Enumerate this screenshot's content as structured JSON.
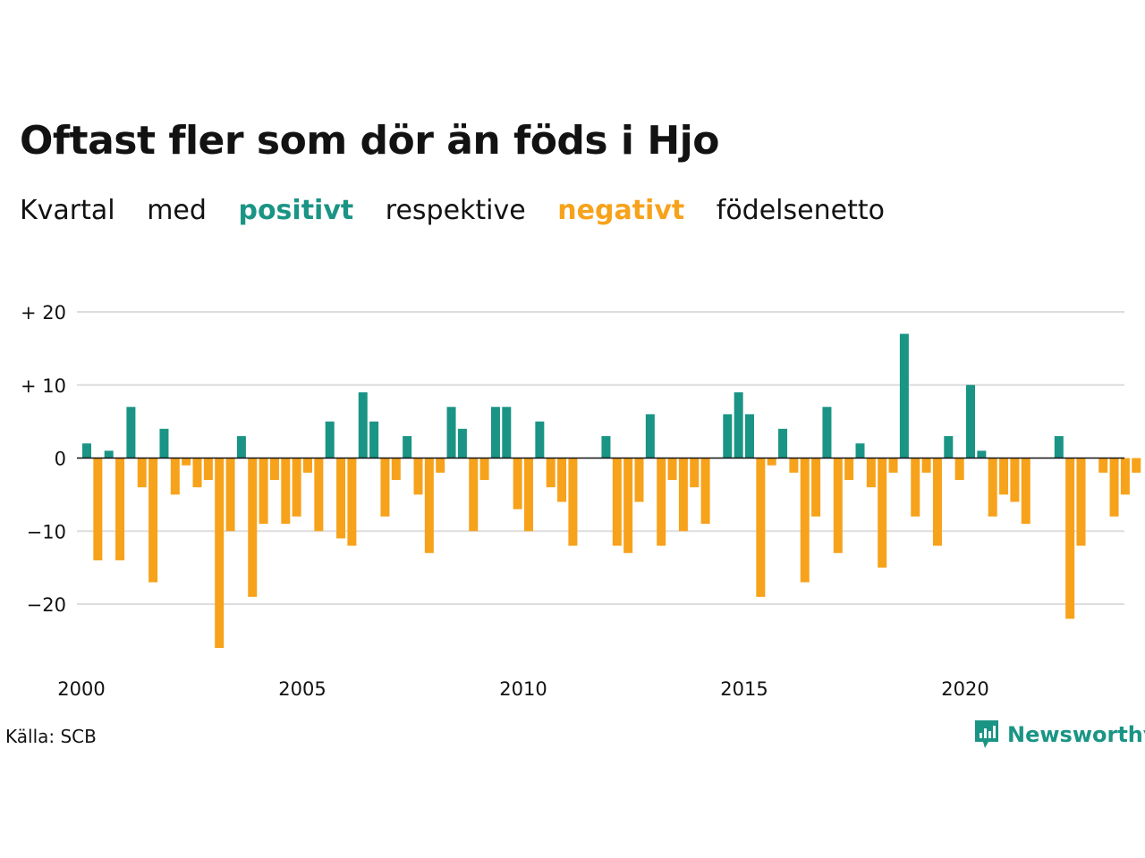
{
  "header": {
    "title": "Oftast fler som dör än föds i Hjo",
    "subtitle": {
      "part1": "Kvartal",
      "part2": "med",
      "positive_word": "positivt",
      "part3": "respektive",
      "negative_word": "negativt",
      "part4": "födelsenetto"
    }
  },
  "footer": {
    "source": "Källa: SCB",
    "brand": "Newsworthy",
    "brand_icon": "newsworthy-logo-icon"
  },
  "colors": {
    "positive": "#1a9485",
    "negative": "#f7a21b",
    "grid": "#dddddd",
    "zero_line": "#121212"
  },
  "chart_data": {
    "type": "bar",
    "x_start": 2000.0,
    "x_step": 0.25,
    "xticks": [
      2000,
      2005,
      2010,
      2015,
      2020
    ],
    "xtick_labels": [
      "2000",
      "2005",
      "2010",
      "2015",
      "2020"
    ],
    "yticks": [
      20,
      10,
      0,
      -10,
      -20
    ],
    "ytick_labels": [
      "+ 20",
      "+ 10",
      "0",
      "−10",
      "−20"
    ],
    "ylim": [
      -27,
      20
    ],
    "grid": true,
    "values": [
      2,
      -14,
      1,
      -14,
      7,
      -4,
      -17,
      4,
      -5,
      -1,
      -4,
      -3,
      -26,
      -10,
      3,
      -19,
      -9,
      -3,
      -9,
      -8,
      -2,
      -10,
      5,
      -11,
      -12,
      9,
      5,
      -8,
      -3,
      3,
      -5,
      -13,
      -2,
      7,
      4,
      -10,
      -3,
      7,
      7,
      -7,
      -10,
      5,
      -4,
      -6,
      -12,
      0,
      0,
      3,
      -12,
      -13,
      -6,
      6,
      -12,
      -3,
      -10,
      -4,
      -9,
      0,
      6,
      9,
      6,
      -19,
      -1,
      4,
      -2,
      -17,
      -8,
      7,
      -13,
      -3,
      2,
      -4,
      -15,
      -2,
      17,
      -8,
      -2,
      -12,
      3,
      -3,
      10,
      1,
      -8,
      -5,
      -6,
      -9,
      0,
      0,
      3,
      -22,
      -12,
      0,
      -2,
      -8,
      -5,
      -2
    ]
  }
}
